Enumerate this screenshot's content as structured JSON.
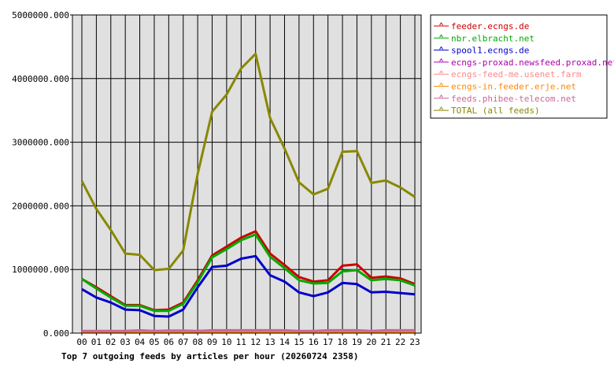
{
  "chart_data": {
    "type": "line",
    "title": "Top 7 outgoing feeds by articles per hour (20260724 2358)",
    "xlabel": "",
    "ylabel": "",
    "ylim": [
      0,
      5000000
    ],
    "yticks": [
      "0.000",
      "1000000.000",
      "2000000.000",
      "3000000.000",
      "4000000.000",
      "5000000.000"
    ],
    "categories": [
      "00",
      "01",
      "02",
      "03",
      "04",
      "05",
      "06",
      "07",
      "08",
      "09",
      "10",
      "11",
      "12",
      "13",
      "14",
      "15",
      "16",
      "17",
      "18",
      "19",
      "20",
      "21",
      "22",
      "23"
    ],
    "grid": true,
    "legend_position": "right",
    "series": [
      {
        "name": "feeder.ecngs.de",
        "color": "#cc0000",
        "values": [
          850000,
          720000,
          580000,
          440000,
          440000,
          360000,
          370000,
          480000,
          830000,
          1220000,
          1360000,
          1500000,
          1600000,
          1250000,
          1070000,
          880000,
          810000,
          830000,
          1060000,
          1080000,
          870000,
          890000,
          860000,
          770000
        ]
      },
      {
        "name": "nbr.elbracht.net",
        "color": "#00aa00",
        "values": [
          850000,
          700000,
          560000,
          430000,
          430000,
          350000,
          350000,
          460000,
          800000,
          1190000,
          1320000,
          1460000,
          1550000,
          1200000,
          1020000,
          830000,
          780000,
          790000,
          970000,
          990000,
          830000,
          850000,
          830000,
          750000
        ]
      },
      {
        "name": "spool1.ecngs.de",
        "color": "#0000cc",
        "values": [
          690000,
          560000,
          480000,
          370000,
          360000,
          270000,
          260000,
          370000,
          720000,
          1040000,
          1060000,
          1170000,
          1210000,
          910000,
          810000,
          640000,
          580000,
          640000,
          790000,
          770000,
          640000,
          650000,
          630000,
          610000
        ]
      },
      {
        "name": "ecngs-proxad.newsfeed.proxad.net",
        "color": "#aa00aa",
        "values": [
          25000,
          25000,
          25000,
          25000,
          30000,
          25000,
          25000,
          25000,
          25000,
          30000,
          30000,
          30000,
          30000,
          30000,
          30000,
          25000,
          25000,
          30000,
          30000,
          30000,
          25000,
          30000,
          30000,
          30000
        ]
      },
      {
        "name": "ecngs-feed-me.usenet.farm",
        "color": "#ff8888",
        "values": [
          20000,
          20000,
          20000,
          20000,
          25000,
          20000,
          20000,
          20000,
          20000,
          25000,
          25000,
          25000,
          25000,
          25000,
          25000,
          20000,
          20000,
          25000,
          25000,
          25000,
          20000,
          25000,
          25000,
          25000
        ]
      },
      {
        "name": "ecngs-in.feeder.erje.net",
        "color": "#ff8800",
        "values": [
          15000,
          15000,
          15000,
          15000,
          20000,
          15000,
          15000,
          15000,
          15000,
          20000,
          20000,
          20000,
          20000,
          20000,
          20000,
          15000,
          15000,
          20000,
          20000,
          20000,
          15000,
          20000,
          20000,
          20000
        ]
      },
      {
        "name": "feeds.phibee-telecom.net",
        "color": "#cc6699",
        "values": [
          35000,
          35000,
          35000,
          35000,
          45000,
          35000,
          40000,
          40000,
          35000,
          45000,
          45000,
          45000,
          45000,
          45000,
          45000,
          35000,
          35000,
          45000,
          45000,
          45000,
          35000,
          45000,
          45000,
          45000
        ]
      },
      {
        "name": "TOTAL (all feeds)",
        "color": "#888800",
        "values": [
          2390000,
          1950000,
          1620000,
          1250000,
          1230000,
          990000,
          1010000,
          1300000,
          2500000,
          3480000,
          3750000,
          4160000,
          4390000,
          3380000,
          2900000,
          2370000,
          2180000,
          2270000,
          2850000,
          2860000,
          2360000,
          2400000,
          2290000,
          2140000
        ]
      }
    ]
  }
}
